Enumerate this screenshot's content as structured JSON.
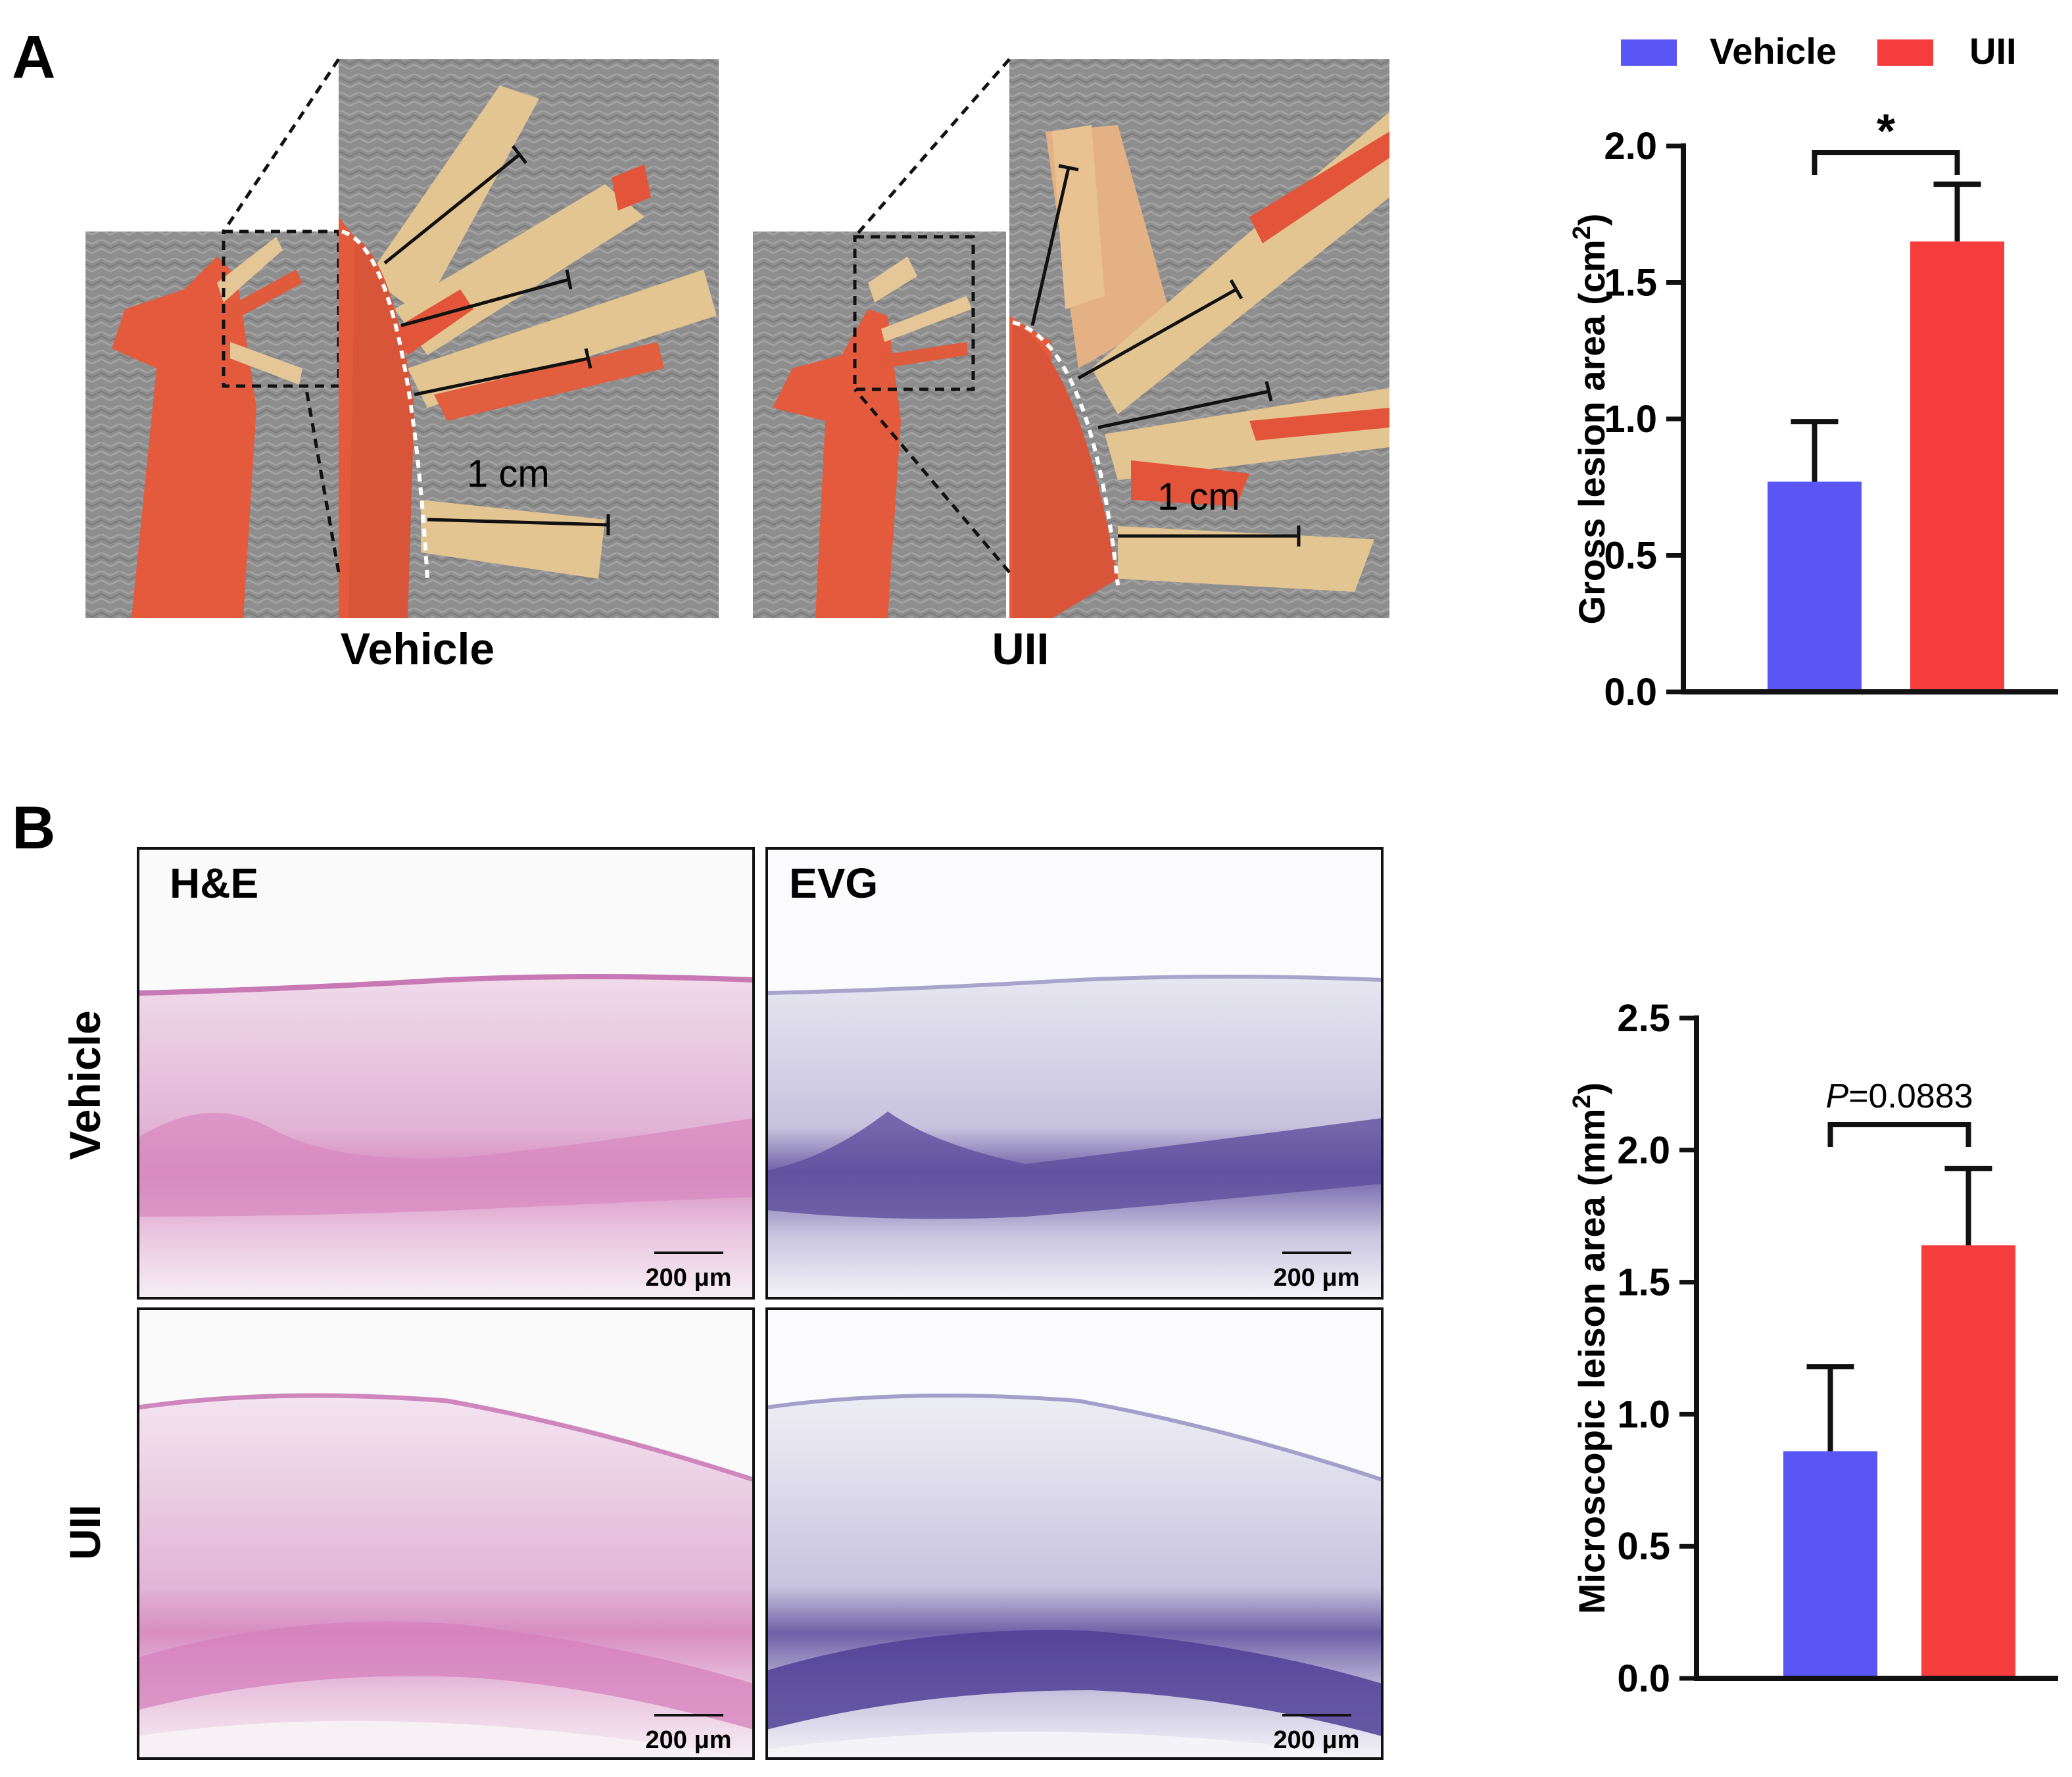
{
  "panel_a": {
    "label": "A",
    "photo_vehicle_caption": "Vehicle",
    "photo_uii_caption": "UII",
    "scale_bar_vehicle": "1 cm",
    "scale_bar_uii": "1 cm"
  },
  "panel_b": {
    "label": "B",
    "stain_he": "H&E",
    "stain_evg": "EVG",
    "row_vehicle": "Vehicle",
    "row_uii": "UII",
    "scale_bar": "200 μm",
    "colors": {
      "he": "#d27fb8",
      "evg": "#5b4a9b"
    }
  },
  "colors": {
    "vehicle": "#5a55f5",
    "uii": "#f53d3d",
    "tissue_red": "#e2553a",
    "tissue_tan": "#e2c79a",
    "background_gray": "#8f8f8f"
  },
  "chart_data": [
    {
      "type": "bar",
      "categories": [
        "Vehicle",
        "UII"
      ],
      "values": [
        0.77,
        1.65
      ],
      "errors": [
        0.22,
        0.21
      ],
      "ylabel_text": "Gross lesion area (cm",
      "ylabel_sup": "2",
      "ylabel_close": ")",
      "ylim": [
        0,
        2.0
      ],
      "yticks": [
        "0.0",
        "0.5",
        "1.0",
        "1.5",
        "2.0"
      ],
      "significance": "*",
      "legend": [
        "Vehicle",
        "UII"
      ],
      "legend_position": "top-right"
    },
    {
      "type": "bar",
      "categories": [
        "Vehicle",
        "UII"
      ],
      "values": [
        0.86,
        1.64
      ],
      "errors": [
        0.32,
        0.29
      ],
      "ylabel_text": "Microscopic leison area (mm",
      "ylabel_sup": "2",
      "ylabel_close": ")",
      "ylim": [
        0,
        2.5
      ],
      "yticks": [
        "0.0",
        "0.5",
        "1.0",
        "1.5",
        "2.0",
        "2.5"
      ],
      "significance_p_italic": "P",
      "significance_p_value": "=0.0883"
    }
  ]
}
